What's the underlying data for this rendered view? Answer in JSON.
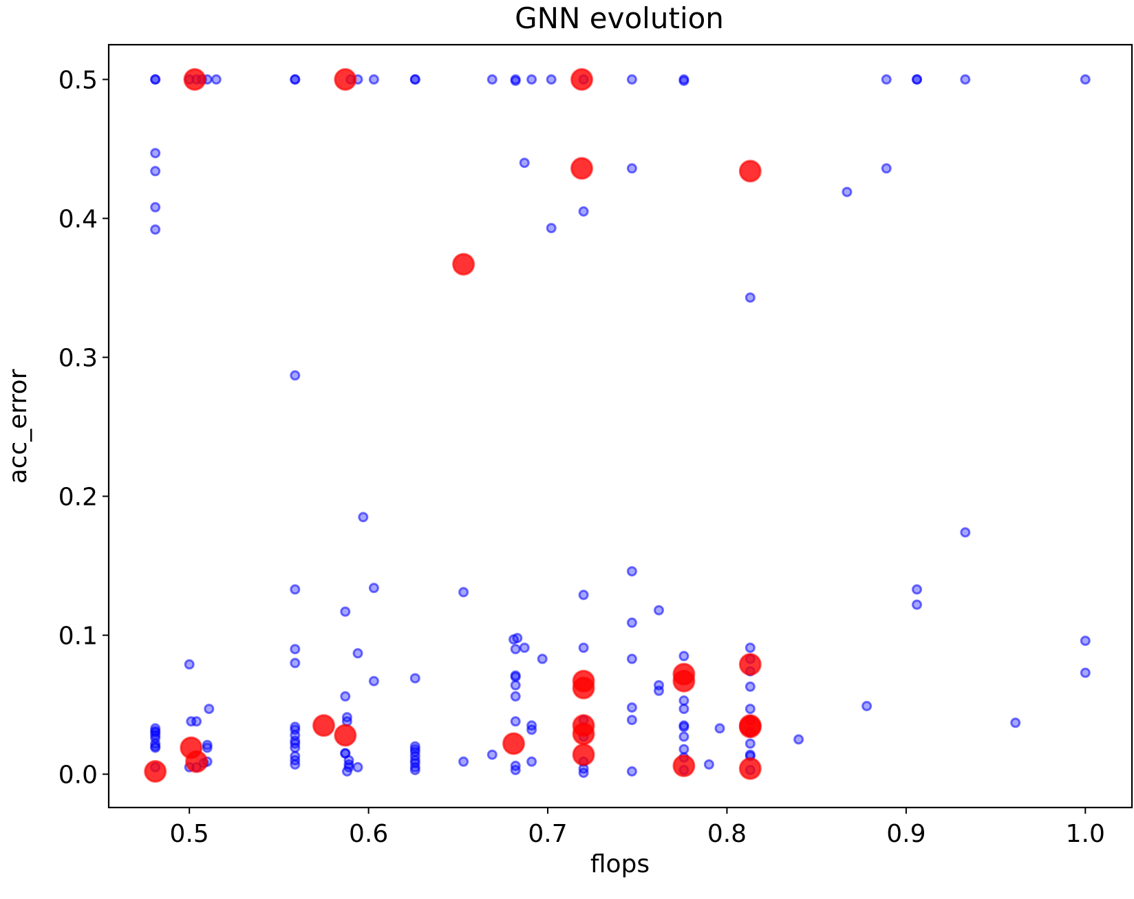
{
  "chart_data": {
    "type": "scatter",
    "title": "GNN evolution",
    "xlabel": "flops",
    "ylabel": "acc_error",
    "xlim": [
      0.455,
      1.026
    ],
    "ylim": [
      -0.024,
      0.525
    ],
    "xticks": [
      0.5,
      0.6,
      0.7,
      0.8,
      0.9,
      1.0
    ],
    "xtick_labels": [
      "0.5",
      "0.6",
      "0.7",
      "0.8",
      "0.9",
      "1.0"
    ],
    "yticks": [
      0.0,
      0.1,
      0.2,
      0.3,
      0.4,
      0.5
    ],
    "ytick_labels": [
      "0.0",
      "0.1",
      "0.2",
      "0.3",
      "0.4",
      "0.5"
    ],
    "grid": false,
    "legend": false,
    "series": [
      {
        "color": "#0000ff",
        "alpha": 0.45,
        "marker": "circle-small",
        "points": [
          [
            0.481,
            0.5
          ],
          [
            0.481,
            0.5
          ],
          [
            0.5,
            0.5
          ],
          [
            0.504,
            0.5
          ],
          [
            0.507,
            0.5
          ],
          [
            0.51,
            0.5
          ],
          [
            0.515,
            0.5
          ],
          [
            0.559,
            0.5
          ],
          [
            0.559,
            0.5
          ],
          [
            0.59,
            0.5
          ],
          [
            0.594,
            0.5
          ],
          [
            0.603,
            0.5
          ],
          [
            0.626,
            0.5
          ],
          [
            0.626,
            0.5
          ],
          [
            0.669,
            0.5
          ],
          [
            0.682,
            0.499
          ],
          [
            0.682,
            0.5
          ],
          [
            0.691,
            0.5
          ],
          [
            0.702,
            0.5
          ],
          [
            0.72,
            0.5
          ],
          [
            0.747,
            0.5
          ],
          [
            0.776,
            0.5
          ],
          [
            0.776,
            0.499
          ],
          [
            0.889,
            0.5
          ],
          [
            0.906,
            0.5
          ],
          [
            0.906,
            0.5
          ],
          [
            0.933,
            0.5
          ],
          [
            1.0,
            0.5
          ],
          [
            0.481,
            0.447
          ],
          [
            0.481,
            0.434
          ],
          [
            0.481,
            0.408
          ],
          [
            0.481,
            0.392
          ],
          [
            0.687,
            0.44
          ],
          [
            0.702,
            0.393
          ],
          [
            0.72,
            0.405
          ],
          [
            0.747,
            0.436
          ],
          [
            0.867,
            0.419
          ],
          [
            0.889,
            0.436
          ],
          [
            0.813,
            0.343
          ],
          [
            0.559,
            0.287
          ],
          [
            0.597,
            0.185
          ],
          [
            0.933,
            0.174
          ],
          [
            0.559,
            0.133
          ],
          [
            0.603,
            0.134
          ],
          [
            0.653,
            0.131
          ],
          [
            0.72,
            0.129
          ],
          [
            0.747,
            0.146
          ],
          [
            0.906,
            0.133
          ],
          [
            0.906,
            0.122
          ],
          [
            0.587,
            0.117
          ],
          [
            0.762,
            0.118
          ],
          [
            0.747,
            0.109
          ],
          [
            0.559,
            0.09
          ],
          [
            0.559,
            0.08
          ],
          [
            0.594,
            0.087
          ],
          [
            0.681,
            0.097
          ],
          [
            0.683,
            0.098
          ],
          [
            0.687,
            0.091
          ],
          [
            0.682,
            0.09
          ],
          [
            0.697,
            0.083
          ],
          [
            0.72,
            0.091
          ],
          [
            0.747,
            0.083
          ],
          [
            0.776,
            0.085
          ],
          [
            0.813,
            0.091
          ],
          [
            0.813,
            0.083
          ],
          [
            1.0,
            0.096
          ],
          [
            1.0,
            0.073
          ],
          [
            0.5,
            0.079
          ],
          [
            0.603,
            0.067
          ],
          [
            0.626,
            0.069
          ],
          [
            0.682,
            0.071
          ],
          [
            0.682,
            0.07
          ],
          [
            0.682,
            0.064
          ],
          [
            0.682,
            0.056
          ],
          [
            0.762,
            0.064
          ],
          [
            0.762,
            0.06
          ],
          [
            0.776,
            0.053
          ],
          [
            0.813,
            0.074
          ],
          [
            0.813,
            0.063
          ],
          [
            0.587,
            0.056
          ],
          [
            0.511,
            0.047
          ],
          [
            0.747,
            0.048
          ],
          [
            0.747,
            0.039
          ],
          [
            0.813,
            0.047
          ],
          [
            0.878,
            0.049
          ],
          [
            0.961,
            0.037
          ],
          [
            0.776,
            0.047
          ],
          [
            0.481,
            0.033
          ],
          [
            0.481,
            0.031
          ],
          [
            0.481,
            0.03
          ],
          [
            0.481,
            0.028
          ],
          [
            0.481,
            0.026
          ],
          [
            0.481,
            0.022
          ],
          [
            0.481,
            0.02
          ],
          [
            0.481,
            0.019
          ],
          [
            0.481,
            0.005
          ],
          [
            0.501,
            0.038
          ],
          [
            0.504,
            0.038
          ],
          [
            0.5,
            0.005
          ],
          [
            0.504,
            0.005
          ],
          [
            0.51,
            0.021
          ],
          [
            0.51,
            0.019
          ],
          [
            0.51,
            0.009
          ],
          [
            0.508,
            0.008
          ],
          [
            0.559,
            0.034
          ],
          [
            0.559,
            0.032
          ],
          [
            0.559,
            0.028
          ],
          [
            0.559,
            0.024
          ],
          [
            0.559,
            0.022
          ],
          [
            0.559,
            0.019
          ],
          [
            0.559,
            0.013
          ],
          [
            0.559,
            0.01
          ],
          [
            0.559,
            0.007
          ],
          [
            0.588,
            0.041
          ],
          [
            0.588,
            0.038
          ],
          [
            0.587,
            0.015
          ],
          [
            0.587,
            0.015
          ],
          [
            0.589,
            0.01
          ],
          [
            0.589,
            0.007
          ],
          [
            0.589,
            0.005
          ],
          [
            0.588,
            0.002
          ],
          [
            0.594,
            0.005
          ],
          [
            0.626,
            0.02
          ],
          [
            0.626,
            0.018
          ],
          [
            0.626,
            0.016
          ],
          [
            0.626,
            0.013
          ],
          [
            0.626,
            0.01
          ],
          [
            0.626,
            0.008
          ],
          [
            0.626,
            0.005
          ],
          [
            0.626,
            0.003
          ],
          [
            0.653,
            0.009
          ],
          [
            0.669,
            0.014
          ],
          [
            0.682,
            0.038
          ],
          [
            0.682,
            0.006
          ],
          [
            0.682,
            0.003
          ],
          [
            0.691,
            0.035
          ],
          [
            0.691,
            0.032
          ],
          [
            0.691,
            0.009
          ],
          [
            0.72,
            0.039
          ],
          [
            0.72,
            0.027
          ],
          [
            0.72,
            0.009
          ],
          [
            0.72,
            0.004
          ],
          [
            0.72,
            0.001
          ],
          [
            0.747,
            0.002
          ],
          [
            0.776,
            0.035
          ],
          [
            0.776,
            0.034
          ],
          [
            0.776,
            0.027
          ],
          [
            0.776,
            0.018
          ],
          [
            0.776,
            0.012
          ],
          [
            0.776,
            0.003
          ],
          [
            0.79,
            0.007
          ],
          [
            0.796,
            0.033
          ],
          [
            0.813,
            0.039
          ],
          [
            0.813,
            0.03
          ],
          [
            0.813,
            0.022
          ],
          [
            0.813,
            0.014
          ],
          [
            0.813,
            0.013
          ],
          [
            0.813,
            0.003
          ],
          [
            0.84,
            0.025
          ]
        ]
      },
      {
        "color": "#ff0000",
        "alpha": 0.8,
        "marker": "circle-large",
        "points": [
          [
            0.503,
            0.5
          ],
          [
            0.587,
            0.5
          ],
          [
            0.719,
            0.5
          ],
          [
            0.719,
            0.436
          ],
          [
            0.813,
            0.434
          ],
          [
            0.653,
            0.367
          ],
          [
            0.72,
            0.067
          ],
          [
            0.72,
            0.062
          ],
          [
            0.776,
            0.072
          ],
          [
            0.776,
            0.067
          ],
          [
            0.813,
            0.079
          ],
          [
            0.575,
            0.035
          ],
          [
            0.587,
            0.028
          ],
          [
            0.72,
            0.035
          ],
          [
            0.72,
            0.029
          ],
          [
            0.72,
            0.014
          ],
          [
            0.813,
            0.035
          ],
          [
            0.813,
            0.034
          ],
          [
            0.501,
            0.019
          ],
          [
            0.504,
            0.009
          ],
          [
            0.681,
            0.022
          ],
          [
            0.481,
            0.002
          ],
          [
            0.776,
            0.006
          ],
          [
            0.813,
            0.004
          ]
        ]
      }
    ]
  }
}
